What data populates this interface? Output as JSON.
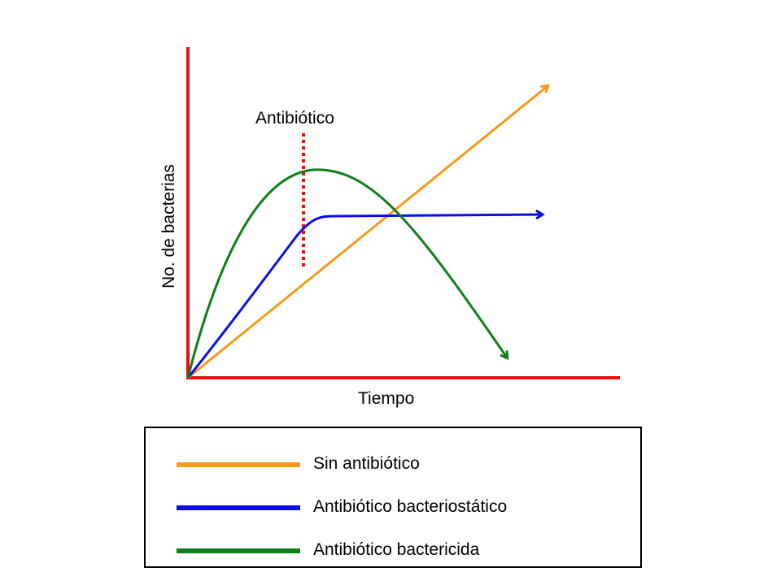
{
  "diagram": {
    "y_axis_label": "No. de bacterias",
    "x_axis_label": "Tiempo",
    "marker_label": "Antibiótico",
    "colors": {
      "axes": "#e8110f",
      "marker": "#e8110f",
      "no_antibiotic": "#f49b1a",
      "bacteriostatic": "#0b0ee5",
      "bactericidal": "#0f7f1a"
    }
  },
  "legend": {
    "items": [
      {
        "label": "Sin antibiótico",
        "color": "#f49b1a"
      },
      {
        "label": "Antibiótico bacteriostático",
        "color": "#0b0ee5"
      },
      {
        "label": "Antibiótico bactericida",
        "color": "#0f7f1a"
      }
    ]
  }
}
